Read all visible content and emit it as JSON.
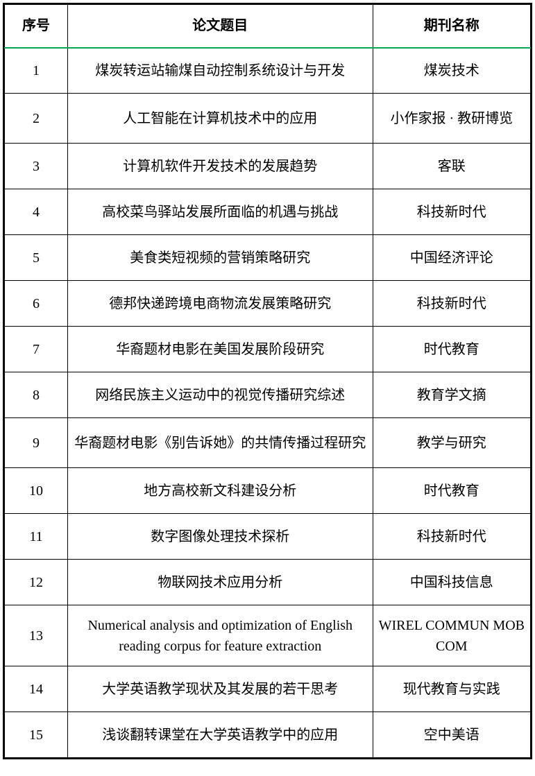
{
  "table": {
    "columns": [
      {
        "label": "序号",
        "width_pct": 12,
        "align": "center"
      },
      {
        "label": "论文题目",
        "width_pct": 58,
        "align": "center"
      },
      {
        "label": "期刊名称",
        "width_pct": 30,
        "align": "center"
      }
    ],
    "header_border_bottom_color": "#00a651",
    "border_color": "#000000",
    "background_color": "#ffffff",
    "font_family": "SimSun / Times New Roman",
    "header_fontsize": 20,
    "cell_fontsize": 20,
    "rows": [
      {
        "num": "1",
        "title": "煤炭转运站输煤自动控制系统设计与开发",
        "journal": "煤炭技术",
        "row_height": "normal"
      },
      {
        "num": "2",
        "title": "人工智能在计算机技术中的应用",
        "journal": "小作家报 · 教研博览",
        "row_height": "tall"
      },
      {
        "num": "3",
        "title": "计算机软件开发技术的发展趋势",
        "journal": "客联",
        "row_height": "normal"
      },
      {
        "num": "4",
        "title": "高校菜鸟驿站发展所面临的机遇与挑战",
        "journal": "科技新时代",
        "row_height": "normal"
      },
      {
        "num": "5",
        "title": "美食类短视频的营销策略研究",
        "journal": "中国经济评论",
        "row_height": "normal"
      },
      {
        "num": "6",
        "title": "德邦快递跨境电商物流发展策略研究",
        "journal": "科技新时代",
        "row_height": "normal"
      },
      {
        "num": "7",
        "title": "华裔题材电影在美国发展阶段研究",
        "journal": "时代教育",
        "row_height": "normal"
      },
      {
        "num": "8",
        "title": "网络民族主义运动中的视觉传播研究综述",
        "journal": "教育学文摘",
        "row_height": "normal"
      },
      {
        "num": "9",
        "title": "华裔题材电影《别告诉她》的共情传播过程研究",
        "journal": "教学与研究",
        "row_height": "tall"
      },
      {
        "num": "10",
        "title": "地方高校新文科建设分析",
        "journal": "时代教育",
        "row_height": "normal"
      },
      {
        "num": "11",
        "title": "数字图像处理技术探析",
        "journal": "科技新时代",
        "row_height": "normal"
      },
      {
        "num": "12",
        "title": "物联网技术应用分析",
        "journal": "中国科技信息",
        "row_height": "normal"
      },
      {
        "num": "13",
        "title": "Numerical analysis and optimization of English reading corpus for feature extraction",
        "journal": "WIREL COMMUN MOB COM",
        "row_height": "taller"
      },
      {
        "num": "14",
        "title": "大学英语教学现状及其发展的若干思考",
        "journal": "现代教育与实践",
        "row_height": "normal"
      },
      {
        "num": "15",
        "title": "浅谈翻转课堂在大学英语教学中的应用",
        "journal": "空中美语",
        "row_height": "normal"
      }
    ]
  }
}
